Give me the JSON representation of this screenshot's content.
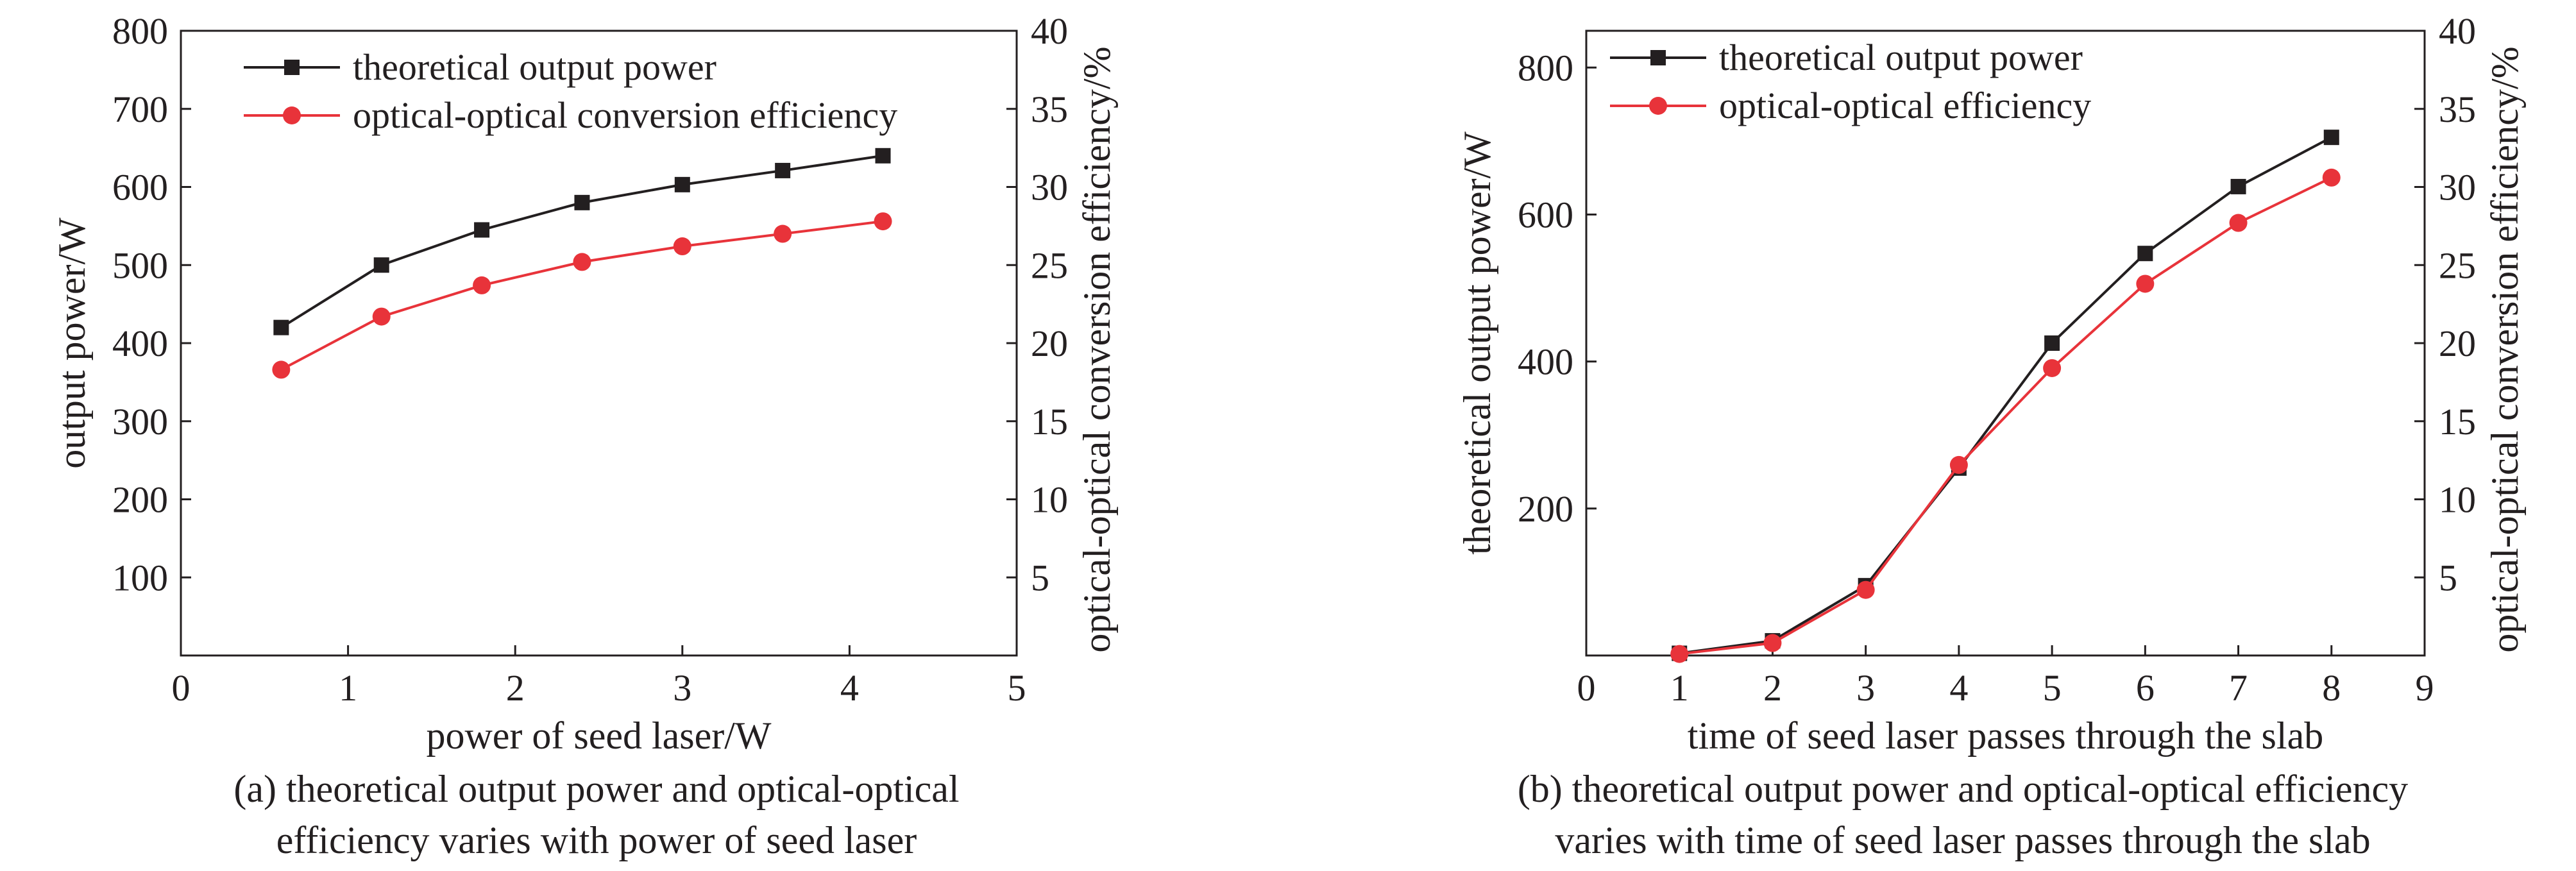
{
  "figure": {
    "colors": {
      "axis": "#231f20",
      "series_black": "#231f20",
      "series_red": "#e8333a"
    }
  },
  "chart_data": [
    {
      "type": "line",
      "caption_line1": "(a) theoretical output power and optical-optical",
      "caption_line2": "efficiency varies with power of seed laser",
      "xlabel": "power of seed laser/W",
      "ylabel": "output power/W",
      "y2label": "optical-optical conversion efficiency/%",
      "xlim": [
        0,
        5
      ],
      "ylim": [
        0,
        800
      ],
      "y2lim": [
        0,
        40
      ],
      "xticks": [
        0,
        1,
        2,
        3,
        4,
        5
      ],
      "yticks": [
        100,
        200,
        300,
        400,
        500,
        600,
        700,
        800
      ],
      "y2ticks": [
        5,
        10,
        15,
        20,
        25,
        30,
        35,
        40
      ],
      "legend_position": "top-left",
      "grid": false,
      "series": [
        {
          "name": "theoretical output power",
          "axis": "left",
          "marker": "square",
          "color": "#231f20",
          "x": [
            0.6,
            1.2,
            1.8,
            2.4,
            3.0,
            3.6,
            4.2
          ],
          "values": [
            420,
            500,
            545,
            580,
            603,
            621,
            640
          ]
        },
        {
          "name": "optical-optical conversion efficiency",
          "axis": "right",
          "marker": "circle",
          "color": "#e8333a",
          "x": [
            0.6,
            1.2,
            1.8,
            2.4,
            3.0,
            3.6,
            4.2
          ],
          "values": [
            18.3,
            21.7,
            23.7,
            25.2,
            26.2,
            27.0,
            27.8
          ]
        }
      ]
    },
    {
      "type": "line",
      "caption_line1": "(b) theoretical output power and optical-optical efficiency",
      "caption_line2": "varies with time of seed laser passes through the slab",
      "xlabel": "time of seed laser passes through the slab",
      "ylabel": "theoretical output power/W",
      "y2label": "optical-optical conversion efficiency/%",
      "xlim": [
        0,
        9
      ],
      "ylim": [
        0,
        850
      ],
      "y2lim": [
        0,
        40
      ],
      "xticks": [
        0,
        1,
        2,
        3,
        4,
        5,
        6,
        7,
        8,
        9
      ],
      "yticks": [
        200,
        400,
        600,
        800
      ],
      "y2ticks": [
        5,
        10,
        15,
        20,
        25,
        30,
        35,
        40
      ],
      "legend_position": "top-left",
      "grid": false,
      "series": [
        {
          "name": "theoretical output power",
          "axis": "left",
          "marker": "square",
          "color": "#231f20",
          "x": [
            1,
            2,
            3,
            4,
            5,
            6,
            7,
            8
          ],
          "values": [
            3,
            20,
            95,
            255,
            425,
            547,
            638,
            705
          ]
        },
        {
          "name": "optical-optical efficiency",
          "axis": "right",
          "marker": "circle",
          "color": "#e8333a",
          "x": [
            1,
            2,
            3,
            4,
            5,
            6,
            7,
            8
          ],
          "values": [
            0.1,
            0.8,
            4.2,
            12.2,
            18.4,
            23.8,
            27.7,
            30.6
          ]
        }
      ]
    }
  ]
}
